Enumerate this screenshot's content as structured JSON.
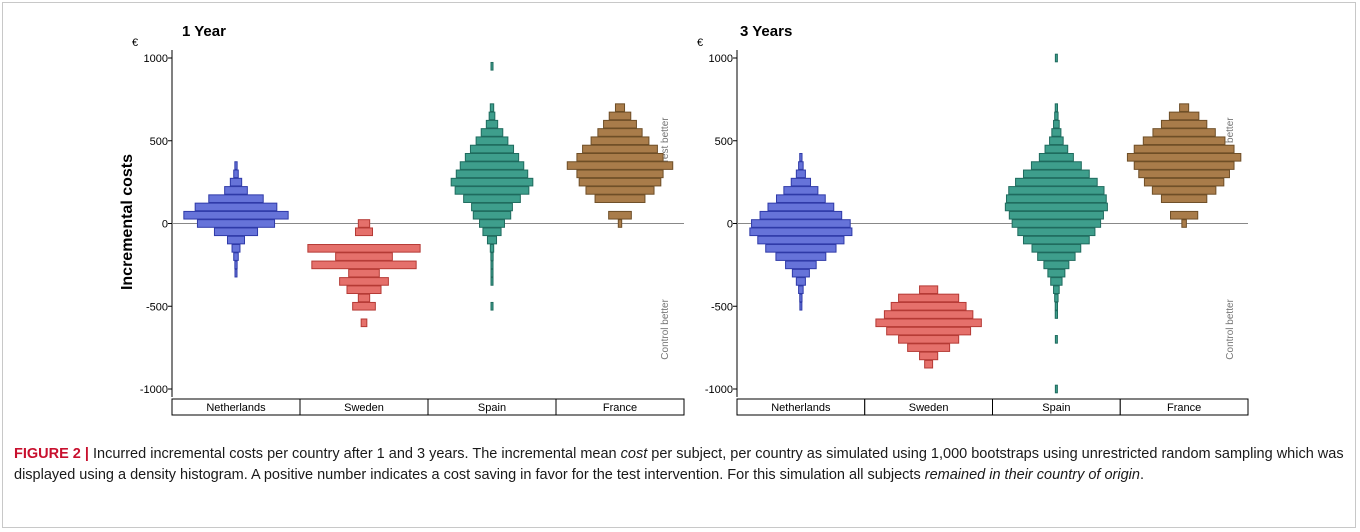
{
  "figure": {
    "y_axis_label": "Incremental costs",
    "currency_symbol": "€",
    "region_top": "Test better",
    "region_bottom": "Control better",
    "caption": {
      "label": "FIGURE 2 |",
      "parts": [
        {
          "text": " Incurred incremental costs per country after 1 and 3 years. The incremental mean ",
          "italic": false
        },
        {
          "text": "cost",
          "italic": true
        },
        {
          "text": " per subject, per country as simulated using 1,000 bootstraps using unrestricted random sampling which was displayed using a density histogram. A positive number indicates a cost saving in favor for the test intervention. For this simulation all subjects ",
          "italic": false
        },
        {
          "text": "remained in their country of origin",
          "italic": true
        },
        {
          "text": ".",
          "italic": false
        }
      ]
    }
  },
  "chart_data": [
    {
      "type": "bar",
      "subtype": "density-histogram",
      "title": "1 Year",
      "ylabel": "Incremental costs",
      "ylim": [
        -1000,
        1000
      ],
      "yticks": [
        -1000,
        -500,
        0,
        500,
        1000
      ],
      "categories": [
        "Netherlands",
        "Sweden",
        "Spain",
        "France"
      ],
      "series": [
        {
          "name": "Netherlands",
          "color": "#6673d9",
          "edge": "#2f3aa8",
          "bins": [
            [
              -300,
              0.01
            ],
            [
              -250,
              0.02
            ],
            [
              -200,
              0.04
            ],
            [
              -150,
              0.07
            ],
            [
              -100,
              0.15
            ],
            [
              -50,
              0.38
            ],
            [
              0,
              0.68
            ],
            [
              50,
              0.92
            ],
            [
              100,
              0.72
            ],
            [
              150,
              0.48
            ],
            [
              200,
              0.2
            ],
            [
              250,
              0.1
            ],
            [
              300,
              0.04
            ],
            [
              350,
              0.02
            ]
          ]
        },
        {
          "name": "Sweden",
          "color": "#e5706b",
          "edge": "#b53a35",
          "bins": [
            [
              -600,
              0.05
            ],
            [
              -500,
              0.2
            ],
            [
              -450,
              0.1
            ],
            [
              -400,
              0.3
            ],
            [
              -350,
              0.43
            ],
            [
              -300,
              0.27
            ],
            [
              -250,
              0.92
            ],
            [
              -200,
              0.5
            ],
            [
              -150,
              0.99
            ],
            [
              -50,
              0.15
            ],
            [
              0,
              0.1
            ]
          ]
        },
        {
          "name": "Spain",
          "color": "#3e9e8c",
          "edge": "#1f6b5e",
          "bins": [
            [
              -500,
              0.01
            ],
            [
              -350,
              0.01
            ],
            [
              -300,
              0.01
            ],
            [
              -250,
              0.01
            ],
            [
              -200,
              0.02
            ],
            [
              -150,
              0.03
            ],
            [
              -100,
              0.08
            ],
            [
              -50,
              0.16
            ],
            [
              0,
              0.22
            ],
            [
              50,
              0.33
            ],
            [
              100,
              0.36
            ],
            [
              150,
              0.5
            ],
            [
              200,
              0.65
            ],
            [
              250,
              0.72
            ],
            [
              300,
              0.63
            ],
            [
              350,
              0.56
            ],
            [
              400,
              0.47
            ],
            [
              450,
              0.38
            ],
            [
              500,
              0.28
            ],
            [
              550,
              0.19
            ],
            [
              600,
              0.1
            ],
            [
              650,
              0.05
            ],
            [
              700,
              0.03
            ],
            [
              950,
              0.01
            ]
          ]
        },
        {
          "name": "France",
          "color": "#a97c4a",
          "edge": "#6e4e27",
          "bins": [
            [
              0,
              0.03
            ],
            [
              50,
              0.2
            ],
            [
              150,
              0.44
            ],
            [
              200,
              0.6
            ],
            [
              250,
              0.72
            ],
            [
              300,
              0.76
            ],
            [
              350,
              0.93
            ],
            [
              400,
              0.76
            ],
            [
              450,
              0.66
            ],
            [
              500,
              0.51
            ],
            [
              550,
              0.39
            ],
            [
              600,
              0.29
            ],
            [
              650,
              0.19
            ],
            [
              700,
              0.08
            ]
          ]
        }
      ]
    },
    {
      "type": "bar",
      "subtype": "density-histogram",
      "title": "3 Years",
      "ylabel": "",
      "ylim": [
        -1000,
        1000
      ],
      "yticks": [
        -1000,
        -500,
        0,
        500,
        1000
      ],
      "categories": [
        "Netherlands",
        "Sweden",
        "Spain",
        "France"
      ],
      "series": [
        {
          "name": "Netherlands",
          "color": "#6673d9",
          "edge": "#2f3aa8",
          "bins": [
            [
              -500,
              0.01
            ],
            [
              -450,
              0.02
            ],
            [
              -400,
              0.04
            ],
            [
              -350,
              0.08
            ],
            [
              -300,
              0.15
            ],
            [
              -250,
              0.27
            ],
            [
              -200,
              0.44
            ],
            [
              -150,
              0.62
            ],
            [
              -100,
              0.76
            ],
            [
              -50,
              0.9
            ],
            [
              0,
              0.87
            ],
            [
              50,
              0.72
            ],
            [
              100,
              0.58
            ],
            [
              150,
              0.43
            ],
            [
              200,
              0.3
            ],
            [
              250,
              0.17
            ],
            [
              300,
              0.08
            ],
            [
              350,
              0.04
            ],
            [
              400,
              0.02
            ]
          ]
        },
        {
          "name": "Sweden",
          "color": "#e5706b",
          "edge": "#b53a35",
          "bins": [
            [
              -850,
              0.07
            ],
            [
              -800,
              0.16
            ],
            [
              -750,
              0.37
            ],
            [
              -700,
              0.53
            ],
            [
              -650,
              0.74
            ],
            [
              -600,
              0.93
            ],
            [
              -550,
              0.78
            ],
            [
              -500,
              0.66
            ],
            [
              -450,
              0.53
            ],
            [
              -400,
              0.16
            ]
          ]
        },
        {
          "name": "Spain",
          "color": "#3e9e8c",
          "edge": "#1f6b5e",
          "bins": [
            [
              -1000,
              0.01
            ],
            [
              -700,
              0.01
            ],
            [
              -550,
              0.02
            ],
            [
              -500,
              0.02
            ],
            [
              -450,
              0.03
            ],
            [
              -400,
              0.05
            ],
            [
              -350,
              0.1
            ],
            [
              -300,
              0.15
            ],
            [
              -250,
              0.22
            ],
            [
              -200,
              0.33
            ],
            [
              -150,
              0.43
            ],
            [
              -100,
              0.58
            ],
            [
              -50,
              0.68
            ],
            [
              0,
              0.78
            ],
            [
              50,
              0.83
            ],
            [
              100,
              0.9
            ],
            [
              150,
              0.88
            ],
            [
              200,
              0.84
            ],
            [
              250,
              0.72
            ],
            [
              300,
              0.58
            ],
            [
              350,
              0.44
            ],
            [
              400,
              0.3
            ],
            [
              450,
              0.2
            ],
            [
              500,
              0.12
            ],
            [
              550,
              0.08
            ],
            [
              600,
              0.05
            ],
            [
              650,
              0.03
            ],
            [
              700,
              0.02
            ],
            [
              1000,
              0.01
            ]
          ]
        },
        {
          "name": "France",
          "color": "#a97c4a",
          "edge": "#6e4e27",
          "bins": [
            [
              0,
              0.04
            ],
            [
              50,
              0.24
            ],
            [
              150,
              0.4
            ],
            [
              200,
              0.56
            ],
            [
              250,
              0.7
            ],
            [
              300,
              0.8
            ],
            [
              350,
              0.88
            ],
            [
              400,
              1.0
            ],
            [
              450,
              0.88
            ],
            [
              500,
              0.72
            ],
            [
              550,
              0.55
            ],
            [
              600,
              0.4
            ],
            [
              650,
              0.26
            ],
            [
              700,
              0.08
            ]
          ]
        }
      ]
    }
  ]
}
